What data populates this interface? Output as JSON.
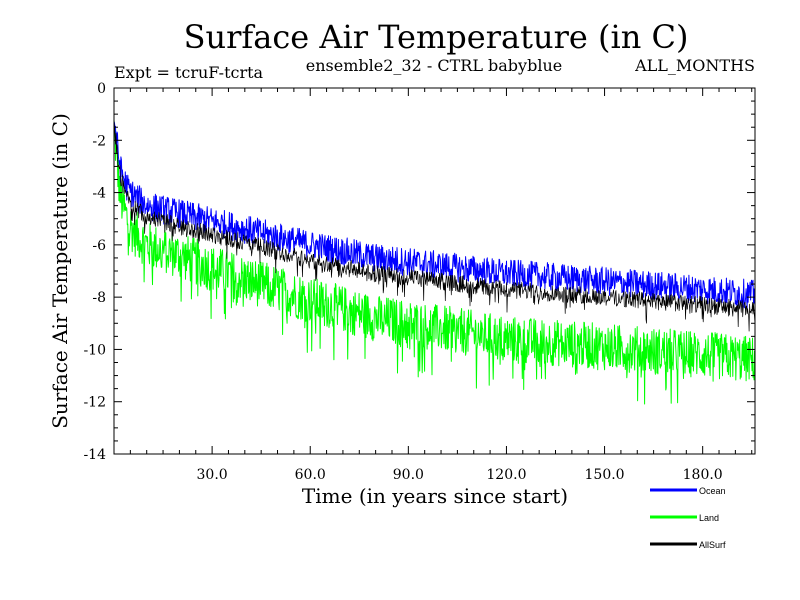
{
  "chart_data": {
    "type": "line",
    "title": "Surface Air Temperature (in C)",
    "subtitle": "ensemble2_32 - CTRL babyblue",
    "expt_label": "Expt = tcruF-tcrta",
    "months_label": "ALL_MONTHS",
    "xlabel": "Time (in years since start)",
    "ylabel": "Surface Air Temperature (in C)",
    "xlim": [
      0,
      196
    ],
    "ylim": [
      -14,
      0
    ],
    "xticks": [
      30,
      60,
      90,
      120,
      150,
      180
    ],
    "xtick_labels": [
      "30.0",
      "60.0",
      "90.0",
      "120.0",
      "150.0",
      "180.0"
    ],
    "yticks": [
      0,
      -2,
      -4,
      -6,
      -8,
      -10,
      -12,
      -14
    ],
    "ytick_labels": [
      "0",
      "-2",
      "-4",
      "-6",
      "-8",
      "-10",
      "-12",
      "-14"
    ],
    "legend_position": "bottom-right",
    "series": [
      {
        "name": "Ocean",
        "color": "#0000ff",
        "x": [
          0,
          1,
          2,
          4,
          6,
          10,
          20,
          30,
          40,
          60,
          80,
          100,
          120,
          140,
          160,
          180,
          196
        ],
        "values": [
          -1.2,
          -2.2,
          -3.1,
          -3.8,
          -4.1,
          -4.5,
          -4.8,
          -5.1,
          -5.4,
          -6.0,
          -6.5,
          -6.8,
          -7.1,
          -7.3,
          -7.5,
          -7.7,
          -7.9
        ]
      },
      {
        "name": "Land",
        "color": "#00ff00",
        "x": [
          0,
          1,
          2,
          4,
          6,
          10,
          20,
          30,
          40,
          60,
          80,
          100,
          120,
          140,
          160,
          180,
          196
        ],
        "values": [
          -1.5,
          -3.0,
          -4.2,
          -5.0,
          -5.5,
          -6.0,
          -6.4,
          -6.9,
          -7.3,
          -8.1,
          -8.8,
          -9.2,
          -9.6,
          -9.8,
          -10.0,
          -10.2,
          -10.4
        ]
      },
      {
        "name": "AllSurf",
        "color": "#000000",
        "x": [
          0,
          1,
          2,
          4,
          6,
          10,
          20,
          30,
          40,
          60,
          80,
          100,
          120,
          140,
          160,
          180,
          196
        ],
        "values": [
          -1.3,
          -2.5,
          -3.4,
          -4.2,
          -4.5,
          -4.9,
          -5.3,
          -5.6,
          -5.9,
          -6.6,
          -7.1,
          -7.4,
          -7.7,
          -7.9,
          -8.1,
          -8.3,
          -8.5
        ]
      }
    ]
  }
}
